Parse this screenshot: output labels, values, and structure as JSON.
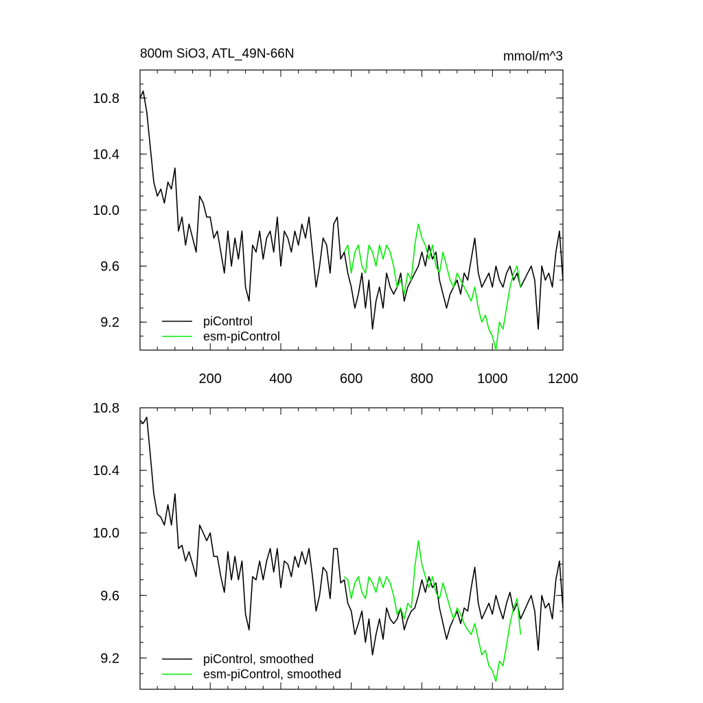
{
  "chart_data": [
    {
      "type": "line",
      "title": "800m SiO3, ATL_49N-66N",
      "units": "mmol/m^3",
      "xlabel": "",
      "ylabel": "",
      "xlim": [
        1,
        1200
      ],
      "ylim": [
        9.0,
        11.0
      ],
      "xticks": [
        200,
        400,
        600,
        800,
        1000,
        1200
      ],
      "yticks": [
        9.2,
        9.6,
        10.0,
        10.4,
        10.8
      ],
      "legend_position": "bottom-left",
      "series": [
        {
          "name": "piControl",
          "color": "#000000",
          "x": [
            1,
            10,
            20,
            30,
            40,
            50,
            60,
            70,
            80,
            90,
            100,
            110,
            120,
            130,
            140,
            150,
            160,
            170,
            180,
            190,
            200,
            210,
            220,
            230,
            240,
            250,
            260,
            270,
            280,
            290,
            300,
            310,
            320,
            330,
            340,
            350,
            360,
            370,
            380,
            390,
            400,
            410,
            420,
            430,
            440,
            450,
            460,
            470,
            480,
            490,
            500,
            510,
            520,
            530,
            540,
            550,
            560,
            570,
            580,
            590,
            600,
            610,
            620,
            630,
            640,
            650,
            660,
            670,
            680,
            690,
            700,
            710,
            720,
            730,
            740,
            750,
            760,
            770,
            780,
            790,
            800,
            810,
            820,
            830,
            840,
            850,
            860,
            870,
            880,
            890,
            900,
            910,
            920,
            930,
            940,
            950,
            960,
            970,
            980,
            990,
            1000,
            1010,
            1020,
            1030,
            1040,
            1050,
            1060,
            1070,
            1080,
            1090,
            1100,
            1110,
            1120,
            1130,
            1140,
            1150,
            1160,
            1170,
            1180,
            1190,
            1200
          ],
          "values": [
            10.8,
            10.85,
            10.7,
            10.45,
            10.2,
            10.1,
            10.15,
            10.05,
            10.2,
            10.15,
            10.3,
            9.85,
            9.95,
            9.75,
            9.9,
            9.8,
            9.7,
            10.1,
            10.05,
            9.95,
            9.95,
            9.8,
            9.85,
            9.7,
            9.55,
            9.85,
            9.6,
            9.8,
            9.65,
            9.85,
            9.45,
            9.35,
            9.75,
            9.7,
            9.85,
            9.65,
            9.8,
            9.85,
            9.7,
            9.95,
            9.6,
            9.85,
            9.8,
            9.7,
            9.85,
            9.75,
            9.9,
            9.8,
            9.95,
            9.7,
            9.45,
            9.6,
            9.8,
            9.75,
            9.55,
            9.9,
            9.95,
            9.65,
            9.7,
            9.55,
            9.45,
            9.3,
            9.4,
            9.55,
            9.3,
            9.5,
            9.15,
            9.35,
            9.45,
            9.3,
            9.55,
            9.45,
            9.4,
            9.45,
            9.55,
            9.35,
            9.45,
            9.5,
            9.55,
            9.6,
            9.7,
            9.6,
            9.75,
            9.65,
            9.7,
            9.5,
            9.4,
            9.3,
            9.4,
            9.45,
            9.5,
            9.4,
            9.55,
            9.5,
            9.65,
            9.8,
            9.55,
            9.45,
            9.5,
            9.55,
            9.45,
            9.6,
            9.5,
            9.45,
            9.55,
            9.6,
            9.5,
            9.55,
            9.45,
            9.5,
            9.55,
            9.6,
            9.5,
            9.15,
            9.6,
            9.5,
            9.55,
            9.45,
            9.7,
            9.85,
            9.5
          ]
        },
        {
          "name": "esm-piControl",
          "color": "#00ee00",
          "x": [
            580,
            590,
            600,
            610,
            620,
            630,
            640,
            650,
            660,
            670,
            680,
            690,
            700,
            710,
            720,
            730,
            740,
            750,
            760,
            770,
            780,
            790,
            800,
            810,
            820,
            830,
            840,
            850,
            860,
            870,
            880,
            890,
            900,
            910,
            920,
            930,
            940,
            950,
            960,
            970,
            980,
            990,
            1000,
            1010,
            1020,
            1030,
            1040,
            1050,
            1060,
            1070,
            1080
          ],
          "values": [
            9.7,
            9.75,
            9.55,
            9.7,
            9.75,
            9.6,
            9.55,
            9.75,
            9.7,
            9.6,
            9.75,
            9.65,
            9.75,
            9.7,
            9.6,
            9.45,
            9.5,
            9.4,
            9.55,
            9.5,
            9.75,
            9.9,
            9.8,
            9.75,
            9.65,
            9.75,
            9.6,
            9.55,
            9.7,
            9.6,
            9.5,
            9.45,
            9.55,
            9.5,
            9.45,
            9.4,
            9.35,
            9.45,
            9.3,
            9.2,
            9.25,
            9.15,
            9.1,
            9.0,
            9.2,
            9.15,
            9.3,
            9.45,
            9.55,
            9.6,
            9.45
          ]
        }
      ]
    },
    {
      "type": "line",
      "title": "",
      "xlabel": "",
      "ylabel": "",
      "xlim": [
        1,
        1200
      ],
      "ylim": [
        9.0,
        10.8
      ],
      "yticks": [
        9.2,
        9.6,
        10.0,
        10.4,
        10.8
      ],
      "legend_position": "bottom-left",
      "series": [
        {
          "name": "piControl, smoothed",
          "color": "#000000",
          "x": [
            1,
            10,
            20,
            30,
            40,
            50,
            60,
            70,
            80,
            90,
            100,
            110,
            120,
            130,
            140,
            150,
            160,
            170,
            180,
            190,
            200,
            210,
            220,
            230,
            240,
            250,
            260,
            270,
            280,
            290,
            300,
            310,
            320,
            330,
            340,
            350,
            360,
            370,
            380,
            390,
            400,
            410,
            420,
            430,
            440,
            450,
            460,
            470,
            480,
            490,
            500,
            510,
            520,
            530,
            540,
            550,
            560,
            570,
            580,
            590,
            600,
            610,
            620,
            630,
            640,
            650,
            660,
            670,
            680,
            690,
            700,
            710,
            720,
            730,
            740,
            750,
            760,
            770,
            780,
            790,
            800,
            810,
            820,
            830,
            840,
            850,
            860,
            870,
            880,
            890,
            900,
            910,
            920,
            930,
            940,
            950,
            960,
            970,
            980,
            990,
            1000,
            1010,
            1020,
            1030,
            1040,
            1050,
            1060,
            1070,
            1080,
            1090,
            1100,
            1110,
            1120,
            1130,
            1140,
            1150,
            1160,
            1170,
            1180,
            1190,
            1200
          ],
          "values": [
            10.72,
            10.7,
            10.74,
            10.5,
            10.25,
            10.12,
            10.1,
            10.05,
            10.18,
            10.05,
            10.25,
            9.9,
            9.92,
            9.82,
            9.88,
            9.8,
            9.72,
            10.05,
            10.0,
            9.95,
            10.0,
            9.85,
            9.85,
            9.72,
            9.62,
            9.88,
            9.7,
            9.85,
            9.7,
            9.82,
            9.48,
            9.38,
            9.72,
            9.7,
            9.82,
            9.7,
            9.82,
            9.9,
            9.75,
            9.9,
            9.65,
            9.82,
            9.8,
            9.72,
            9.85,
            9.78,
            9.88,
            9.8,
            9.9,
            9.72,
            9.5,
            9.6,
            9.78,
            9.75,
            9.58,
            9.9,
            9.9,
            9.68,
            9.7,
            9.55,
            9.5,
            9.35,
            9.42,
            9.5,
            9.3,
            9.45,
            9.22,
            9.35,
            9.45,
            9.32,
            9.52,
            9.45,
            9.42,
            9.45,
            9.52,
            9.38,
            9.45,
            9.5,
            9.52,
            9.6,
            9.7,
            9.62,
            9.72,
            9.65,
            9.68,
            9.52,
            9.42,
            9.32,
            9.4,
            9.45,
            9.5,
            9.42,
            9.52,
            9.5,
            9.65,
            9.78,
            9.55,
            9.45,
            9.5,
            9.55,
            9.48,
            9.6,
            9.52,
            9.45,
            9.55,
            9.62,
            9.5,
            9.55,
            9.45,
            9.5,
            9.55,
            9.6,
            9.5,
            9.25,
            9.6,
            9.52,
            9.55,
            9.45,
            9.7,
            9.82,
            9.52
          ]
        },
        {
          "name": "esm-piControl, smoothed",
          "color": "#00ee00",
          "x": [
            580,
            590,
            600,
            610,
            620,
            630,
            640,
            650,
            660,
            670,
            680,
            690,
            700,
            710,
            720,
            730,
            740,
            750,
            760,
            770,
            780,
            790,
            800,
            810,
            820,
            830,
            840,
            850,
            860,
            870,
            880,
            890,
            900,
            910,
            920,
            930,
            940,
            950,
            960,
            970,
            980,
            990,
            1000,
            1010,
            1020,
            1030,
            1040,
            1050,
            1060,
            1070,
            1080
          ],
          "values": [
            9.72,
            9.7,
            9.58,
            9.68,
            9.72,
            9.62,
            9.58,
            9.72,
            9.68,
            9.62,
            9.72,
            9.65,
            9.72,
            9.68,
            9.6,
            9.48,
            9.52,
            9.45,
            9.55,
            9.52,
            9.78,
            9.95,
            9.8,
            9.72,
            9.65,
            9.72,
            9.62,
            9.58,
            9.68,
            9.6,
            9.52,
            9.45,
            9.52,
            9.48,
            9.42,
            9.38,
            9.35,
            9.42,
            9.32,
            9.22,
            9.25,
            9.15,
            9.12,
            9.05,
            9.18,
            9.15,
            9.28,
            9.42,
            9.52,
            9.58,
            9.35
          ]
        }
      ]
    }
  ]
}
